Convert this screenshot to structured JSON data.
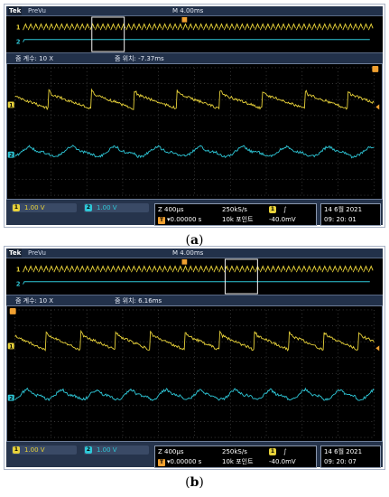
{
  "colors": {
    "ch1": "#e8d23a",
    "ch2": "#2ec8d8",
    "trigger": "#f0a030",
    "grid": "#5b5b5b"
  },
  "panels": [
    {
      "brand": "Tek",
      "mode": "PreVu",
      "timebase": "M 4.00ms",
      "zoom_factor": "줌 계수: 10 X",
      "zoom_position": "줌 위치: -7.37ms",
      "zoom_window_fraction": 0.26,
      "ch1_scale": "1.00 V",
      "ch2_scale": "1.00 V",
      "ch1_num": "1",
      "ch2_num": "2",
      "horiz": "Z 400μs",
      "trig_delay": "▾0.00000 s",
      "sample_rate": "250kS/s",
      "points": "10k 포인트",
      "trig_channel": "1",
      "trig_slope": "∫",
      "trig_level": "-40.0mV",
      "date": "14 6월  2021",
      "time": "09: 20: 01",
      "caption_label": "a"
    },
    {
      "brand": "Tek",
      "mode": "PreVu",
      "timebase": "M 4.00ms",
      "zoom_factor": "줌 계수: 10 X",
      "zoom_position": "줌 위치: 6.16ms",
      "zoom_window_fraction": 0.63,
      "ch1_scale": "1.00 V",
      "ch2_scale": "1.00 V",
      "ch1_num": "1",
      "ch2_num": "2",
      "horiz": "Z 400μs",
      "trig_delay": "▾0.00000 s",
      "sample_rate": "250kS/s",
      "points": "10k 포인트",
      "trig_channel": "1",
      "trig_slope": "∫",
      "trig_level": "-40.0mV",
      "date": "14 6월  2021",
      "time": "09: 20: 07",
      "caption_label": "b"
    }
  ]
}
